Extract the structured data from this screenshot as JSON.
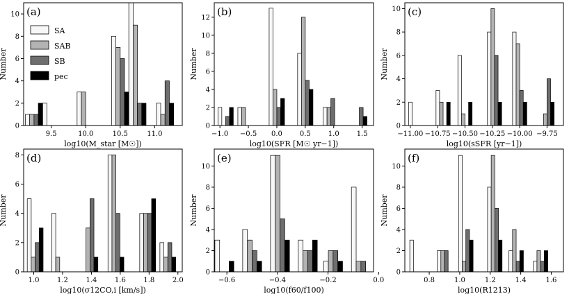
{
  "figure": {
    "ylabel": "Number"
  },
  "legend": {
    "entries": [
      {
        "name": "SA",
        "color": "#f7f7f7"
      },
      {
        "name": "SAB",
        "color": "#b3b3b3"
      },
      {
        "name": "SB",
        "color": "#6e6e6e"
      },
      {
        "name": "pec",
        "color": "#000000"
      }
    ],
    "location": "top-left",
    "panel": 0
  },
  "chart_data": [
    {
      "type": "bar",
      "panel_label": "(a)",
      "xlabel": "log10(M_star [M☉])",
      "xlabel_parts": {
        "pre": "log",
        "sub": "10",
        "mid1": "(",
        "italic": "M",
        "sub2": "star",
        "post": " [M",
        "sun": "☉",
        "end": "])"
      },
      "xlim": [
        9.1,
        11.4
      ],
      "ylim": [
        0,
        11
      ],
      "xticks": [
        9.5,
        10.0,
        10.5,
        11.0
      ],
      "xtick_labels": [
        "9.5",
        "10.0",
        "10.5",
        "11.0"
      ],
      "yticks": [
        0,
        2,
        4,
        6,
        8,
        10
      ],
      "ytick_labels": [
        "0",
        "2",
        "4",
        "6",
        "8",
        "10"
      ],
      "categories": [
        9.25,
        9.5,
        10.0,
        10.5,
        10.75,
        11.15
      ],
      "bin_width": 0.25,
      "series": [
        {
          "name": "SA",
          "values": [
            1,
            2,
            3,
            8,
            11,
            2
          ]
        },
        {
          "name": "SAB",
          "values": [
            1,
            0,
            3,
            7,
            9,
            1
          ]
        },
        {
          "name": "SB",
          "values": [
            1,
            0,
            0,
            6,
            2,
            4
          ]
        },
        {
          "name": "pec",
          "values": [
            2,
            0,
            0,
            3,
            2,
            2
          ]
        }
      ]
    },
    {
      "type": "bar",
      "panel_label": "(b)",
      "xlabel": "log10(SFR [M☉ yr−1])",
      "xlim": [
        -1.1,
        1.7
      ],
      "ylim": [
        0,
        13.6
      ],
      "xticks": [
        -1.0,
        -0.5,
        0.0,
        0.5,
        1.0,
        1.5
      ],
      "xtick_labels": [
        "−1.0",
        "−0.5",
        "0.0",
        "0.5",
        "1.0",
        "1.5"
      ],
      "yticks": [
        0,
        2,
        4,
        6,
        8,
        10,
        12
      ],
      "ytick_labels": [
        "0",
        "2",
        "4",
        "6",
        "8",
        "10",
        "12"
      ],
      "categories": [
        -0.9,
        -0.55,
        0.0,
        0.5,
        0.95,
        1.45
      ],
      "bin_width": 0.27,
      "series": [
        {
          "name": "SA",
          "values": [
            2,
            2,
            13,
            8,
            2,
            0
          ]
        },
        {
          "name": "SAB",
          "values": [
            0,
            2,
            4,
            12,
            2,
            0
          ]
        },
        {
          "name": "SB",
          "values": [
            1,
            0,
            2,
            5,
            3,
            2
          ]
        },
        {
          "name": "pec",
          "values": [
            2,
            0,
            3,
            4,
            0,
            1
          ]
        }
      ]
    },
    {
      "type": "bar",
      "panel_label": "(c)",
      "xlabel": "log10(sSFR [yr−1])",
      "xlim": [
        -11.05,
        -9.6
      ],
      "ylim": [
        0,
        10.5
      ],
      "xticks": [
        -11.0,
        -10.75,
        -10.5,
        -10.25,
        -10.0,
        -9.75
      ],
      "xtick_labels": [
        "−11.00",
        "−10.75",
        "−10.50",
        "−10.25",
        "−10.00",
        "−9.75"
      ],
      "yticks": [
        0,
        2,
        4,
        6,
        8,
        10
      ],
      "ytick_labels": [
        "0",
        "2",
        "4",
        "6",
        "8",
        "10"
      ],
      "categories": [
        -10.95,
        -10.7,
        -10.5,
        -10.23,
        -10.0,
        -9.75
      ],
      "bin_width": 0.13,
      "series": [
        {
          "name": "SA",
          "values": [
            2,
            3,
            6,
            8,
            8,
            0
          ]
        },
        {
          "name": "SAB",
          "values": [
            0,
            2,
            1,
            10,
            7,
            1
          ]
        },
        {
          "name": "SB",
          "values": [
            0,
            0,
            0,
            6,
            3,
            4
          ]
        },
        {
          "name": "pec",
          "values": [
            0,
            2,
            2,
            2,
            2,
            2
          ]
        }
      ]
    },
    {
      "type": "bar",
      "panel_label": "(d)",
      "xlabel": "log10(σ12CO,i [km/s])",
      "xlim": [
        0.93,
        2.03
      ],
      "ylim": [
        0,
        8.4
      ],
      "xticks": [
        1.0,
        1.2,
        1.4,
        1.6,
        1.8,
        2.0
      ],
      "xtick_labels": [
        "1.0",
        "1.2",
        "1.4",
        "1.6",
        "1.8",
        "2.0"
      ],
      "yticks": [
        0,
        2,
        4,
        6,
        8
      ],
      "ytick_labels": [
        "0",
        "2",
        "4",
        "6",
        "8"
      ],
      "categories": [
        1.01,
        1.18,
        1.39,
        1.57,
        1.79,
        1.93
      ],
      "bin_width": 0.11,
      "series": [
        {
          "name": "SA",
          "values": [
            5,
            4,
            0,
            8,
            4,
            2
          ]
        },
        {
          "name": "SAB",
          "values": [
            1,
            1,
            3,
            8,
            4,
            1
          ]
        },
        {
          "name": "SB",
          "values": [
            2,
            0,
            5,
            4,
            4,
            2
          ]
        },
        {
          "name": "pec",
          "values": [
            3,
            0,
            1,
            1,
            5,
            1
          ]
        }
      ]
    },
    {
      "type": "bar",
      "panel_label": "(e)",
      "xlabel": "log10(f60/f100)",
      "xlim": [
        -0.65,
        -0.02
      ],
      "ylim": [
        0,
        11.6
      ],
      "xticks": [
        -0.6,
        -0.4,
        -0.2,
        0.0
      ],
      "xtick_labels": [
        "−0.6",
        "−0.4",
        "−0.2",
        "0.0"
      ],
      "yticks": [
        0,
        2,
        4,
        6,
        8,
        10
      ],
      "ytick_labels": [
        "0",
        "2",
        "4",
        "6",
        "8",
        "10"
      ],
      "categories": [
        -0.61,
        -0.5,
        -0.39,
        -0.28,
        -0.18,
        -0.07
      ],
      "bin_width": 0.075,
      "series": [
        {
          "name": "SA",
          "values": [
            3,
            4,
            11,
            3,
            1,
            8
          ]
        },
        {
          "name": "SAB",
          "values": [
            0,
            3,
            11,
            2,
            2,
            1
          ]
        },
        {
          "name": "SB",
          "values": [
            0,
            2,
            5,
            2,
            2,
            1
          ]
        },
        {
          "name": "pec",
          "values": [
            1,
            1,
            3,
            3,
            1,
            0
          ]
        }
      ]
    },
    {
      "type": "bar",
      "panel_label": "(f)",
      "xlabel": "log10(R1213)",
      "xlim": [
        0.64,
        1.68
      ],
      "ylim": [
        0,
        11.6
      ],
      "xticks": [
        0.8,
        1.0,
        1.2,
        1.4,
        1.6
      ],
      "xtick_labels": [
        "0.8",
        "1.0",
        "1.2",
        "1.4",
        "1.6"
      ],
      "yticks": [
        0,
        2,
        4,
        6,
        8,
        10
      ],
      "ytick_labels": [
        "0",
        "2",
        "4",
        "6",
        "8",
        "10"
      ],
      "categories": [
        0.72,
        0.9,
        1.04,
        1.23,
        1.37,
        1.53
      ],
      "bin_width": 0.095,
      "series": [
        {
          "name": "SA",
          "values": [
            3,
            2,
            11,
            8,
            2,
            1
          ]
        },
        {
          "name": "SAB",
          "values": [
            0,
            2,
            1,
            11,
            4,
            2
          ]
        },
        {
          "name": "SB",
          "values": [
            0,
            2,
            4,
            6,
            1,
            1
          ]
        },
        {
          "name": "pec",
          "values": [
            0,
            0,
            3,
            3,
            2,
            2
          ]
        }
      ]
    }
  ]
}
